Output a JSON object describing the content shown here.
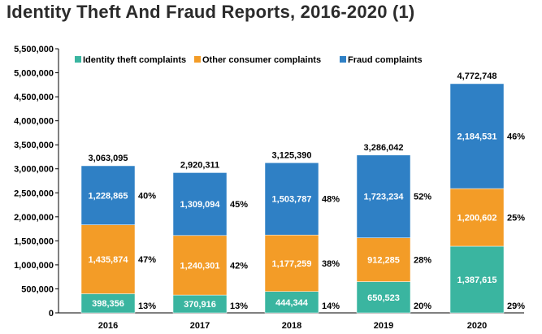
{
  "chart_data": {
    "type": "bar",
    "stacked": true,
    "title": "Identity Theft And Fraud Reports, 2016-2020 (1)",
    "categories": [
      "2016",
      "2017",
      "2018",
      "2019",
      "2020"
    ],
    "series": [
      {
        "name": "Identity theft complaints",
        "color": "#3ab5a0",
        "values": [
          398356,
          370916,
          444344,
          650523,
          1387615
        ],
        "value_labels": [
          "398,356",
          "370,916",
          "444,344",
          "650,523",
          "1,387,615"
        ],
        "percent_labels": [
          "13%",
          "13%",
          "14%",
          "20%",
          "29%"
        ]
      },
      {
        "name": "Other consumer complaints",
        "color": "#f39c27",
        "values": [
          1435874,
          1240301,
          1177259,
          912285,
          1200602
        ],
        "value_labels": [
          "1,435,874",
          "1,240,301",
          "1,177,259",
          "912,285",
          "1,200,602"
        ],
        "percent_labels": [
          "47%",
          "42%",
          "38%",
          "28%",
          "25%"
        ]
      },
      {
        "name": "Fraud complaints",
        "color": "#2f80c5",
        "values": [
          1228865,
          1309094,
          1503787,
          1723234,
          2184531
        ],
        "value_labels": [
          "1,228,865",
          "1,309,094",
          "1,503,787",
          "1,723,234",
          "2,184,531"
        ],
        "percent_labels": [
          "40%",
          "45%",
          "48%",
          "52%",
          "46%"
        ]
      }
    ],
    "totals": [
      3063095,
      2920311,
      3125390,
      3286042,
      4772748
    ],
    "total_labels": [
      "3,063,095",
      "2,920,311",
      "3,125,390",
      "3,286,042",
      "4,772,748"
    ],
    "y_ticks": [
      "0",
      "500,000",
      "1,000,000",
      "1,500,000",
      "2,000,000",
      "2,500,000",
      "3,000,000",
      "3,500,000",
      "4,000,000",
      "4,500,000",
      "5,000,000",
      "5,500,000"
    ],
    "ylim": [
      0,
      5500000
    ],
    "grid": false,
    "legend_position": "top"
  }
}
